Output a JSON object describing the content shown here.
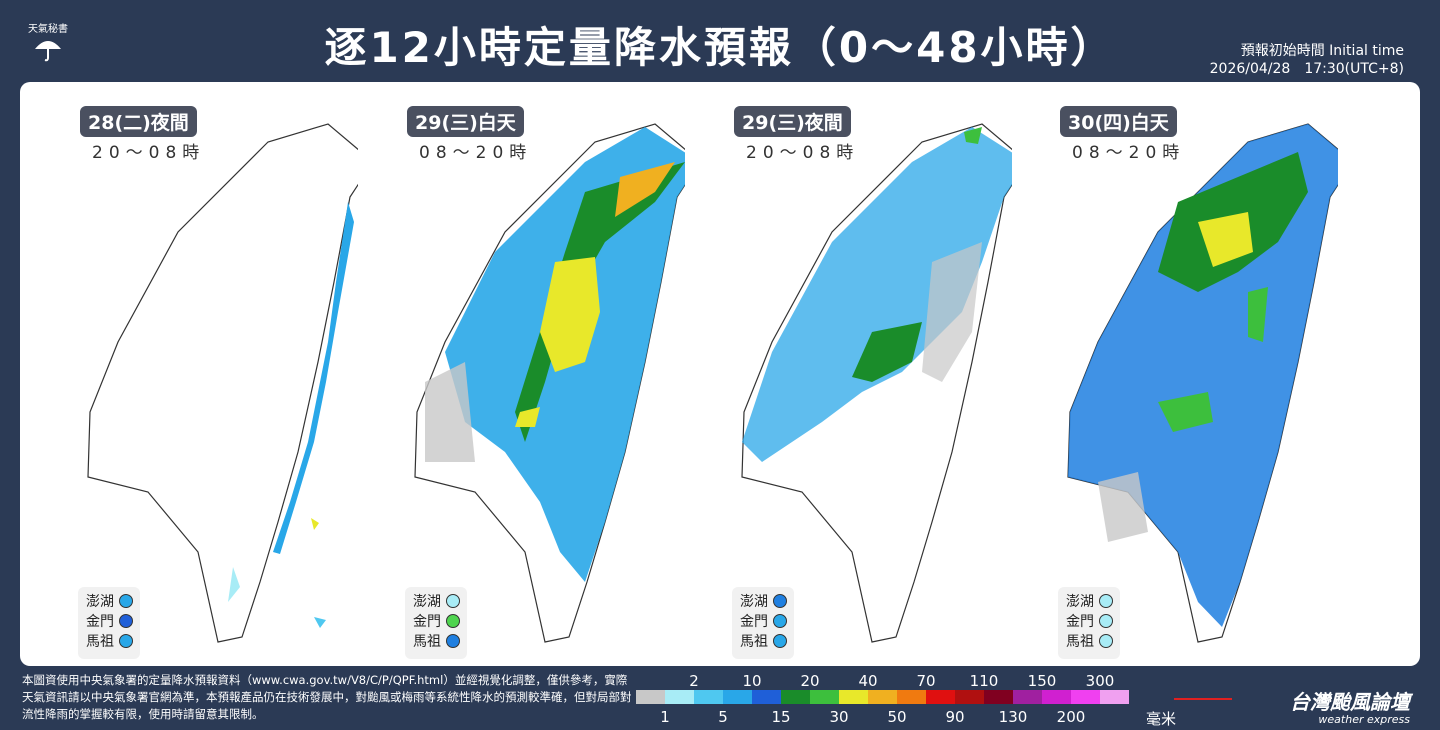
{
  "header": {
    "logo_label": "天氣秘書",
    "title": "逐12小時定量降水預報（0～48小時）",
    "initial_label": "預報初始時間 Initial time",
    "initial_value": "2026/04/28　17:30(UTC+8)"
  },
  "panels": [
    {
      "period": "28(二)夜間",
      "hours": "20～08時",
      "islands": [
        {
          "name": "澎湖",
          "color": "#29a7e8"
        },
        {
          "name": "金門",
          "color": "#1f5fd8"
        },
        {
          "name": "馬祖",
          "color": "#29a7e8"
        }
      ]
    },
    {
      "period": "29(三)白天",
      "hours": "08～20時",
      "islands": [
        {
          "name": "澎湖",
          "color": "#a8ecf6"
        },
        {
          "name": "金門",
          "color": "#4fd44f"
        },
        {
          "name": "馬祖",
          "color": "#1f7fe0"
        }
      ]
    },
    {
      "period": "29(三)夜間",
      "hours": "20～08時",
      "islands": [
        {
          "name": "澎湖",
          "color": "#1f7fe0"
        },
        {
          "name": "金門",
          "color": "#29a7e8"
        },
        {
          "name": "馬祖",
          "color": "#29a7e8"
        }
      ]
    },
    {
      "period": "30(四)白天",
      "hours": "08～20時",
      "islands": [
        {
          "name": "澎湖",
          "color": "#a8ecf6"
        },
        {
          "name": "金門",
          "color": "#a8ecf6"
        },
        {
          "name": "馬祖",
          "color": "#a8ecf6"
        }
      ]
    }
  ],
  "footer_note": "本圖資使用中央氣象署的定量降水預報資料（www.cwa.gov.tw/V8/C/P/QPF.html）並經視覺化調整，僅供參考，實際天氣資訊請以中央氣象署官網為準，本預報產品仍在技術發展中，對颱風或梅雨等系統性降水的預測較準確，但對局部對流性降雨的掌握較有限，使用時請留意其限制。",
  "legend": {
    "top_labels": [
      "2",
      "10",
      "20",
      "40",
      "70",
      "110",
      "150",
      "300"
    ],
    "bottom_labels": [
      "1",
      "5",
      "15",
      "30",
      "50",
      "90",
      "130",
      "200"
    ],
    "colors": [
      "#c8c8c8",
      "#a8ecf6",
      "#4fc8f0",
      "#29a7e8",
      "#1f5fd8",
      "#1a8c2a",
      "#3dbf3d",
      "#e8e82a",
      "#f0b020",
      "#f07a10",
      "#e01010",
      "#b01010",
      "#800020",
      "#a020a0",
      "#d020d0",
      "#f040f0",
      "#f0a0f0"
    ],
    "unit": "毫米"
  },
  "brand": {
    "name": "台灣颱風論壇",
    "sub": "weather express"
  }
}
